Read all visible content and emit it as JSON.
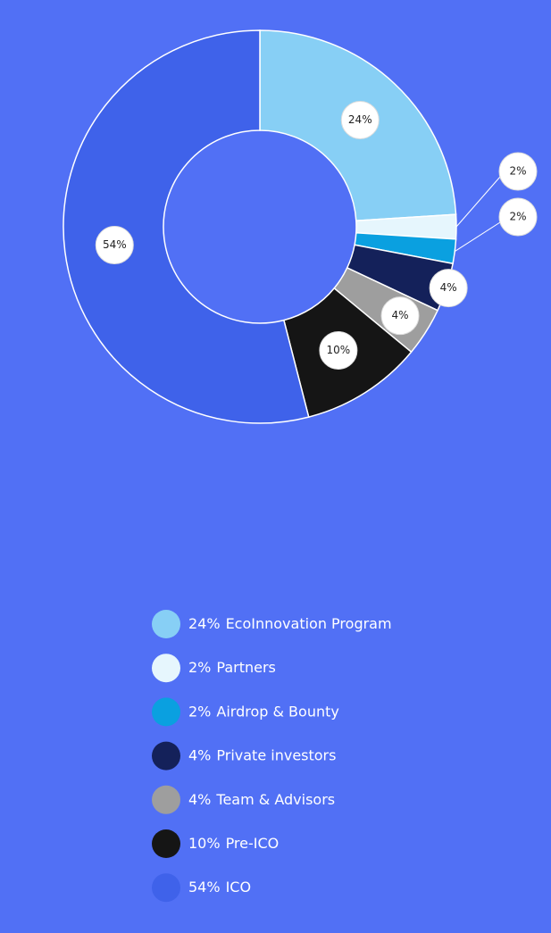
{
  "chart_data": {
    "type": "donut",
    "categories": [
      "EcoInnovation Program",
      "Partners",
      "Airdrop & Bounty",
      "Private investors",
      "Team & Advisors",
      "Pre-ICO",
      "ICO"
    ],
    "values": [
      24,
      2,
      2,
      4,
      4,
      10,
      54
    ],
    "value_labels": [
      "24%",
      "2%",
      "2%",
      "4%",
      "4%",
      "10%",
      "54%"
    ],
    "colors": [
      "#87cff5",
      "#e6f6fd",
      "#0aa0e0",
      "#14215a",
      "#9e9e9e",
      "#151515",
      "#3f62ea"
    ]
  }
}
